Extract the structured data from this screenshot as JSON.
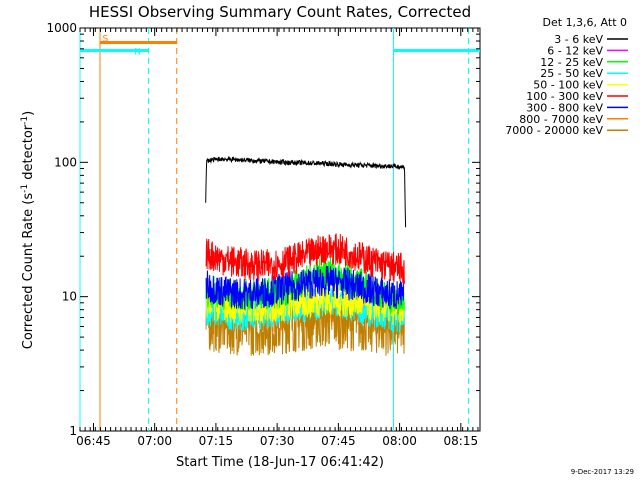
{
  "chart_data": {
    "type": "line",
    "title": "HESSI Observing Summary Count Rates, Corrected",
    "xlabel": "Start Time (18-Jun-17 06:41:42)",
    "ylabel": "Corrected Count Rate (s⁻¹ detector⁻¹)",
    "ylabel_parts": [
      "Corrected Count Rate (s",
      "-1",
      " detector",
      "-1",
      ")"
    ],
    "footer": "9-Dec-2017 13:29",
    "y_scale": "log",
    "x_unit": "minutes after 06:41:42",
    "xlim": [
      0,
      98
    ],
    "ylim": [
      1,
      1000
    ],
    "x_ticks": [
      {
        "value": 3.3,
        "label": "06:45"
      },
      {
        "value": 18.3,
        "label": "07:00"
      },
      {
        "value": 33.3,
        "label": "07:15"
      },
      {
        "value": 48.3,
        "label": "07:30"
      },
      {
        "value": 63.3,
        "label": "07:45"
      },
      {
        "value": 78.3,
        "label": "08:00"
      },
      {
        "value": 93.3,
        "label": "08:15"
      }
    ],
    "y_ticks": [
      {
        "value": 1,
        "label": "1"
      },
      {
        "value": 10,
        "label": "10"
      },
      {
        "value": 100,
        "label": "100"
      },
      {
        "value": 1000,
        "label": "1000"
      }
    ],
    "legend_title": "Det 1,3,6, Att 0",
    "legend_placement": "right",
    "grid": false,
    "series": [
      {
        "name": "3 - 6 keV",
        "color": "#000000",
        "x": [
          30.8,
          31.0,
          35,
          40,
          45,
          50,
          55,
          60,
          65,
          70,
          75,
          78,
          79.5,
          79.8
        ],
        "values": [
          50,
          103,
          106,
          104,
          102,
          100,
          99,
          98,
          96,
          95,
          94,
          93,
          92,
          28
        ]
      },
      {
        "name": "6 - 12 keV",
        "color": "#ff00ff",
        "x": [],
        "values": []
      },
      {
        "name": "12 - 25 keV",
        "color": "#00ff00",
        "x": [
          30.9,
          35,
          40,
          45,
          50,
          55,
          60,
          65,
          70,
          75,
          79.5
        ],
        "values": [
          11,
          10.5,
          10.2,
          10.5,
          11,
          13,
          15.5,
          14,
          12,
          10,
          9
        ]
      },
      {
        "name": "25 - 50 keV",
        "color": "#00ffff",
        "x": [
          30.9,
          35,
          40,
          45,
          50,
          55,
          60,
          65,
          70,
          75,
          79.5
        ],
        "values": [
          8,
          7.5,
          7.3,
          7.5,
          8,
          8.5,
          9,
          8.5,
          8,
          7.2,
          7
        ]
      },
      {
        "name": "50 - 100 keV",
        "color": "#ffff00",
        "x": [
          30.9,
          35,
          40,
          45,
          50,
          55,
          60,
          65,
          70,
          75,
          79.5
        ],
        "values": [
          9,
          8.5,
          8.2,
          8.3,
          8.6,
          9,
          9.5,
          9.2,
          8.8,
          8.2,
          8
        ]
      },
      {
        "name": "100 - 300 keV",
        "color": "#ff0000",
        "x": [
          30.9,
          35,
          40,
          45,
          50,
          55,
          60,
          65,
          70,
          75,
          79.5
        ],
        "values": [
          21,
          19,
          17.5,
          17,
          18,
          20,
          23,
          22,
          19,
          17,
          16
        ]
      },
      {
        "name": "300 - 800 keV",
        "color": "#0000ff",
        "x": [
          30.9,
          35,
          40,
          45,
          50,
          55,
          60,
          65,
          70,
          75,
          79.5
        ],
        "values": [
          12,
          11,
          10.5,
          10.8,
          11.5,
          12.5,
          13,
          12.5,
          11.5,
          10.5,
          10
        ]
      },
      {
        "name": "800 - 7000 keV",
        "color": "#ff7f00",
        "x": [
          30.9,
          35,
          40,
          45,
          50,
          55,
          60,
          65,
          70,
          75,
          79.5
        ],
        "values": [
          7.5,
          7.1,
          6.9,
          6.9,
          7.2,
          7.6,
          8,
          7.8,
          7.3,
          6.9,
          6.7
        ]
      },
      {
        "name": "7000 - 20000 keV",
        "color": "#bf7f00",
        "x": [
          30.9,
          35,
          40,
          45,
          50,
          55,
          60,
          65,
          70,
          75,
          79.5
        ],
        "values": [
          6.5,
          6.2,
          6,
          6,
          6.2,
          6.5,
          6.8,
          6.6,
          6.3,
          6,
          5.8
        ]
      }
    ],
    "flags": [
      {
        "label": "S",
        "color": "#ff7f00",
        "start": 4.9,
        "end": 23.7,
        "value": 780
      },
      {
        "label": "N",
        "color": "#00ffff",
        "start": 0.0,
        "end": 16.8,
        "value": 680
      },
      {
        "label": "",
        "color": "#00ffff",
        "start": 76.8,
        "end": 98.0,
        "value": 680
      }
    ],
    "vlines": [
      {
        "x": 0.0,
        "color": "#00ffff",
        "style": "solid"
      },
      {
        "x": 4.9,
        "color": "#ff7f00",
        "style": "solid"
      },
      {
        "x": 16.8,
        "color": "#00ffff",
        "style": "dashed"
      },
      {
        "x": 23.7,
        "color": "#ff7f00",
        "style": "dashed"
      },
      {
        "x": 76.8,
        "color": "#00ffff",
        "style": "solid"
      },
      {
        "x": 95.2,
        "color": "#00ffff",
        "style": "dashed"
      }
    ]
  }
}
